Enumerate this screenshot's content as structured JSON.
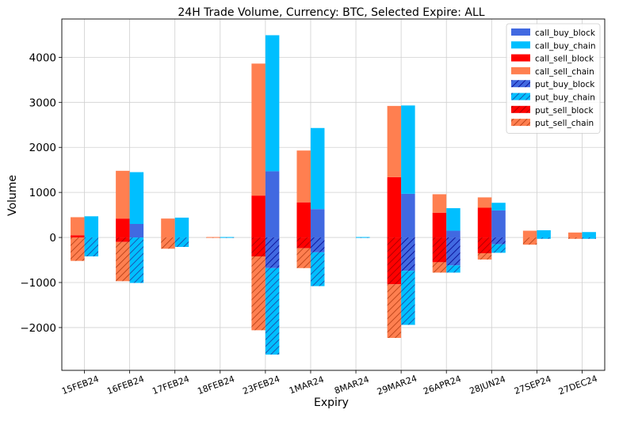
{
  "chart_data": {
    "type": "bar",
    "title": "24H Trade Volume, Currency: BTC, Selected Expire: ALL",
    "xlabel": "Expiry",
    "ylabel": "Volume",
    "ylim": [
      -2950,
      4850
    ],
    "yticks": [
      -2000,
      -1000,
      0,
      1000,
      2000,
      3000,
      4000
    ],
    "ytick_labels": [
      "−2000",
      "−1000",
      "0",
      "1000",
      "2000",
      "3000",
      "4000"
    ],
    "grid": true,
    "legend_position": "top-right",
    "categories": [
      "15FEB24",
      "16FEB24",
      "17FEB24",
      "18FEB24",
      "23FEB24",
      "1MAR24",
      "8MAR24",
      "29MAR24",
      "26APR24",
      "28JUN24",
      "27SEP24",
      "27DEC24"
    ],
    "colors": {
      "call_buy_block": "#4169e1",
      "call_buy_chain": "#00bfff",
      "call_sell_block": "#ff0000",
      "call_sell_chain": "#ff7f50",
      "put_buy_block": "#4169e1",
      "put_buy_chain": "#00bfff",
      "put_sell_block": "#ff0000",
      "put_sell_chain": "#ff7f50"
    },
    "series": [
      {
        "name": "call_buy_block",
        "side": "buy",
        "direction": "call",
        "hatched": false,
        "values": [
          0,
          300,
          0,
          0,
          1470,
          630,
          0,
          970,
          150,
          600,
          0,
          0
        ]
      },
      {
        "name": "call_buy_chain",
        "side": "buy",
        "direction": "call",
        "hatched": false,
        "values": [
          470,
          1150,
          440,
          10,
          3020,
          1800,
          10,
          1960,
          500,
          170,
          160,
          120
        ]
      },
      {
        "name": "call_sell_block",
        "side": "sell",
        "direction": "call",
        "hatched": false,
        "values": [
          50,
          420,
          0,
          0,
          930,
          780,
          0,
          1340,
          550,
          660,
          0,
          0
        ]
      },
      {
        "name": "call_sell_chain",
        "side": "sell",
        "direction": "call",
        "hatched": false,
        "values": [
          400,
          1060,
          420,
          10,
          2930,
          1150,
          0,
          1580,
          410,
          230,
          150,
          110
        ]
      },
      {
        "name": "put_buy_block",
        "side": "buy",
        "direction": "put",
        "hatched": true,
        "values": [
          0,
          0,
          0,
          0,
          -680,
          -330,
          0,
          -740,
          -620,
          -150,
          0,
          0
        ]
      },
      {
        "name": "put_buy_chain",
        "side": "buy",
        "direction": "put",
        "hatched": true,
        "values": [
          -420,
          -1010,
          -210,
          -10,
          -1920,
          -750,
          -10,
          -1200,
          -160,
          -190,
          -30,
          -30
        ]
      },
      {
        "name": "put_sell_block",
        "side": "sell",
        "direction": "put",
        "hatched": true,
        "values": [
          0,
          -100,
          0,
          0,
          -420,
          -240,
          0,
          -1040,
          -550,
          -350,
          0,
          0
        ]
      },
      {
        "name": "put_sell_chain",
        "side": "sell",
        "direction": "put",
        "hatched": true,
        "values": [
          -520,
          -870,
          -250,
          -10,
          -1640,
          -440,
          0,
          -1190,
          -230,
          -140,
          -160,
          -30
        ]
      }
    ]
  }
}
